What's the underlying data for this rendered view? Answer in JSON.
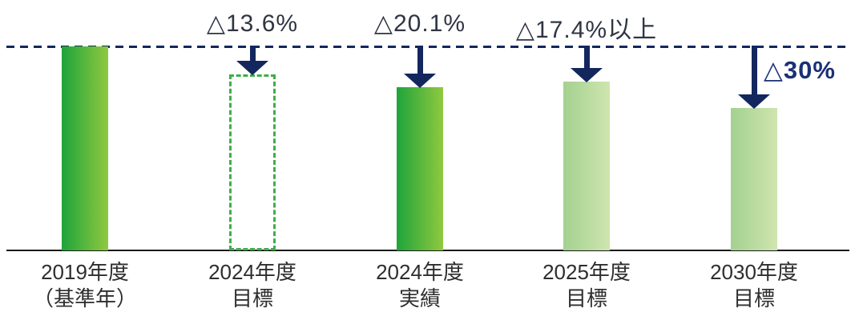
{
  "colors": {
    "navy": "#13275e",
    "annotation_text": "#2f3542",
    "annotation_accent": "#1a3076",
    "bar_dark_start": "#1ea43a",
    "bar_dark_end": "#90c940",
    "bar_light_start": "#a3d190",
    "bar_light_end": "#cfe5af",
    "dashed_bar_border": "#3fae49",
    "axis": "#1a1a1a",
    "label_text": "#2e2e2e",
    "background": "#ffffff"
  },
  "chart_data": {
    "type": "bar",
    "title": "",
    "xlabel": "",
    "ylabel": "",
    "ylim": [
      0,
      100
    ],
    "grid": false,
    "baseline_line": {
      "value": 100,
      "style": "dashed",
      "color": "#13275e"
    },
    "categories": [
      "2019年度（基準年）",
      "2024年度 目標",
      "2024年度 実績",
      "2025年度 目標",
      "2030年度 目標"
    ],
    "values": [
      100,
      86.4,
      79.9,
      82.6,
      70
    ],
    "annotations": [
      null,
      "△13.6%",
      "△20.1%",
      "△17.4%以上",
      "△30%"
    ],
    "groups": [
      {
        "id": "fy2019-baseline",
        "label_lines": [
          "2019年度",
          "（基準年）"
        ],
        "value": 100,
        "bar_style": "gradient-dark",
        "annotation": null
      },
      {
        "id": "fy2024-target",
        "label_lines": [
          "2024年度",
          "目標"
        ],
        "value": 86.4,
        "bar_style": "dashed-outline",
        "annotation": {
          "text": "△13.6%",
          "placement": "above"
        }
      },
      {
        "id": "fy2024-actual",
        "label_lines": [
          "2024年度",
          "実績"
        ],
        "value": 79.9,
        "bar_style": "gradient-dark",
        "annotation": {
          "text": "△20.1%",
          "placement": "above"
        }
      },
      {
        "id": "fy2025-target",
        "label_lines": [
          "2025年度",
          "目標"
        ],
        "value": 82.6,
        "bar_style": "gradient-light",
        "annotation": {
          "text": "△17.4%以上",
          "placement": "above"
        }
      },
      {
        "id": "fy2030-target",
        "label_lines": [
          "2030年度",
          "目標"
        ],
        "value": 70,
        "bar_style": "gradient-light",
        "annotation": {
          "text": "△30%",
          "placement": "beside-arrow"
        }
      }
    ]
  }
}
